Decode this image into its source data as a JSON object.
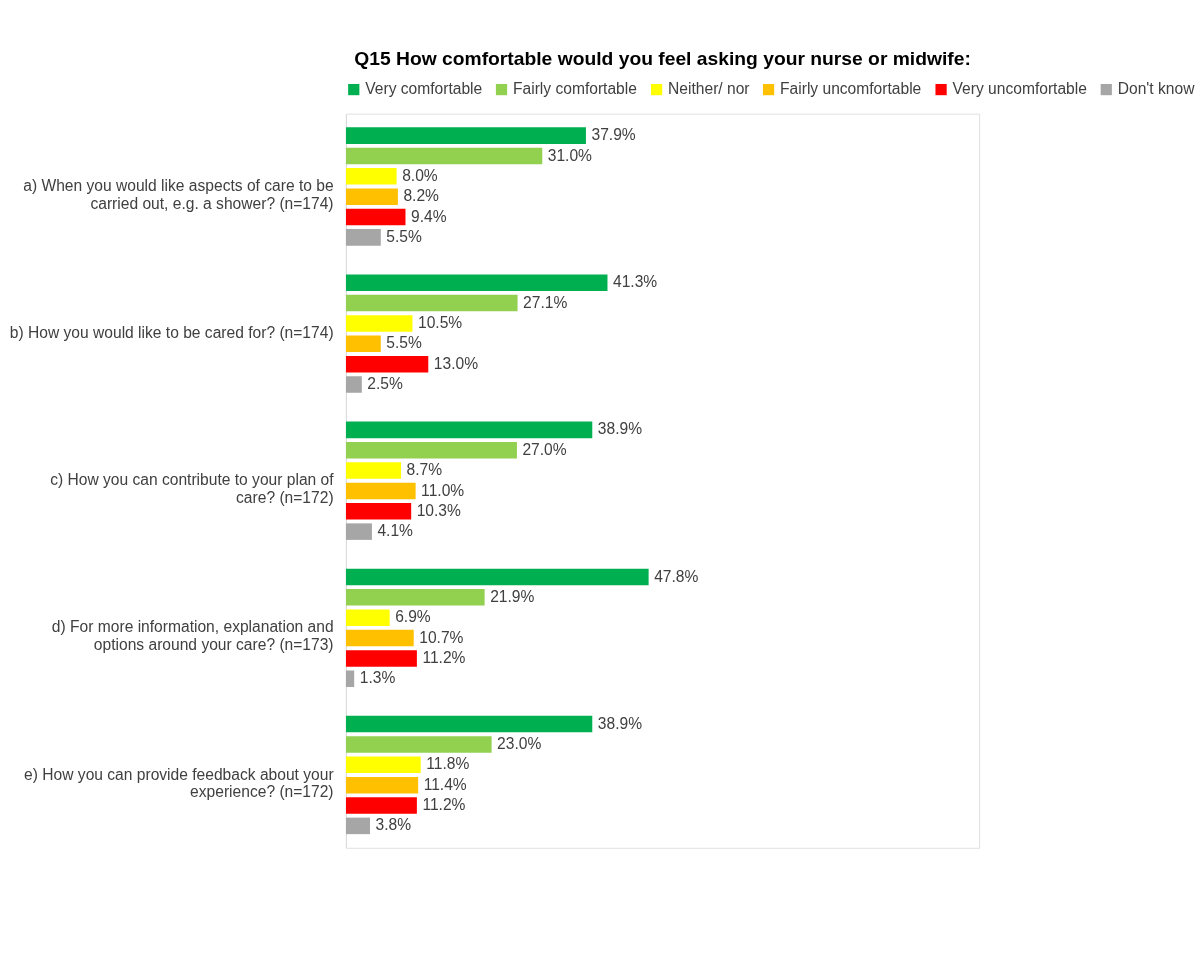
{
  "chart_data": {
    "type": "bar",
    "orientation": "horizontal",
    "title": "Q15 How comfortable would you feel asking your nurse or midwife:",
    "categories": [
      "a) When you would like aspects of care to be carried out, e.g. a shower? (n=174)",
      "b) How you would like to be cared for? (n=174)",
      "c) How you can contribute to your plan of care? (n=172)",
      "d) For more information, explanation and options around your care? (n=173)",
      "e) How you can provide feedback about your experience? (n=172)"
    ],
    "series": [
      {
        "name": "Very comfortable",
        "color": "#00b050",
        "values": [
          37.9,
          41.3,
          38.9,
          47.8,
          38.9
        ],
        "value_labels": [
          "37.9%",
          "41.3%",
          "38.9%",
          "47.8%",
          "38.9%"
        ]
      },
      {
        "name": "Fairly comfortable",
        "color": "#92d050",
        "values": [
          31.0,
          27.1,
          27.0,
          21.9,
          23.0
        ],
        "value_labels": [
          "31.0%",
          "27.1%",
          "27.0%",
          "21.9%",
          "23.0%"
        ]
      },
      {
        "name": "Neither/ nor",
        "color": "#ffff00",
        "values": [
          8.0,
          10.5,
          8.7,
          6.9,
          11.8
        ],
        "value_labels": [
          "8.0%",
          "10.5%",
          "8.7%",
          "6.9%",
          "11.8%"
        ]
      },
      {
        "name": "Fairly uncomfortable",
        "color": "#ffc000",
        "values": [
          8.2,
          5.5,
          11.0,
          10.7,
          11.4
        ],
        "value_labels": [
          "8.2%",
          "5.5%",
          "11.0%",
          "10.7%",
          "11.4%"
        ]
      },
      {
        "name": "Very uncomfortable",
        "color": "#ff0000",
        "values": [
          9.4,
          13.0,
          10.3,
          11.2,
          11.2
        ],
        "value_labels": [
          "9.4%",
          "13.0%",
          "10.3%",
          "11.2%",
          "11.2%"
        ]
      },
      {
        "name": "Don't know",
        "color": "#a6a6a6",
        "values": [
          5.5,
          2.5,
          4.1,
          1.3,
          3.8
        ],
        "value_labels": [
          "5.5%",
          "2.5%",
          "4.1%",
          "1.3%",
          "3.8%"
        ]
      }
    ],
    "xlim": [
      0,
      100
    ],
    "tick_labels": "y",
    "grid": false,
    "legend": "top"
  }
}
